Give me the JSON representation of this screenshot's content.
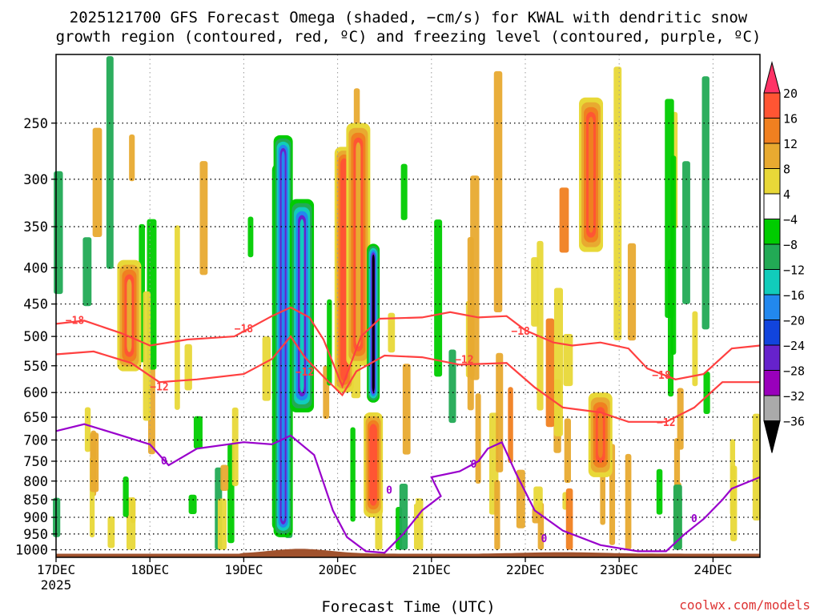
{
  "title_line1": "2025121700 GFS Forecast Omega (shaded, −cm/s) for KWAL with dendritic snow",
  "title_line2": "growth region (contoured, red, ºC) and freezing level (contoured, purple, ºC)",
  "xlabel": "Forecast Time (UTC)",
  "watermark": "coolwx.com/models",
  "chart_data": {
    "type": "heatmap",
    "title": "2025121700 GFS Forecast Omega (shaded, −cm/s) for KWAL with dendritic snow growth region (contoured, red, ºC) and freezing level (contoured, purple, ºC)",
    "xlabel": "Forecast Time (UTC)",
    "ylabel": "",
    "x_ticks": [
      {
        "label": "17DEC",
        "day": 0
      },
      {
        "label": "18DEC",
        "day": 1
      },
      {
        "label": "19DEC",
        "day": 2
      },
      {
        "label": "20DEC",
        "day": 3
      },
      {
        "label": "21DEC",
        "day": 4
      },
      {
        "label": "22DEC",
        "day": 5
      },
      {
        "label": "23DEC",
        "day": 6
      },
      {
        "label": "24DEC",
        "day": 7
      }
    ],
    "x_year_label": "2025",
    "x_range_days": [
      0,
      7.5
    ],
    "y_ticks": [
      250,
      300,
      350,
      400,
      450,
      500,
      550,
      600,
      650,
      700,
      750,
      800,
      850,
      900,
      950,
      1000
    ],
    "y_range_hpa": [
      200,
      1025
    ],
    "y_log": true,
    "grid": true,
    "colorbar": {
      "labels": [
        "20",
        "16",
        "12",
        "8",
        "4",
        "−4",
        "−8",
        "−12",
        "−16",
        "−20",
        "−24",
        "−28",
        "−32",
        "−36"
      ],
      "colors": [
        "#ff3366",
        "#ff5533",
        "#f08020",
        "#e8aa30",
        "#e8d838",
        "#ffffff",
        "#00cc00",
        "#22aa55",
        "#11ccbb",
        "#2288ee",
        "#1144dd",
        "#6622cc",
        "#9900bb",
        "#aaaaaa",
        "#000000"
      ]
    },
    "omega_features": [
      {
        "day": 2.37,
        "p_top": 285,
        "p_bot": 940,
        "value": -38
      },
      {
        "day": 2.42,
        "p_top": 260,
        "p_bot": 960,
        "value": -20
      },
      {
        "day": 2.62,
        "p_top": 320,
        "p_bot": 640,
        "value": -14
      },
      {
        "day": 3.07,
        "p_top": 270,
        "p_bot": 600,
        "value": 18
      },
      {
        "day": 3.22,
        "p_top": 250,
        "p_bot": 550,
        "value": 10
      },
      {
        "day": 3.38,
        "p_top": 370,
        "p_bot": 620,
        "value": -38
      },
      {
        "day": 3.38,
        "p_top": 640,
        "p_bot": 900,
        "value": 16
      },
      {
        "day": 0.78,
        "p_top": 390,
        "p_bot": 560,
        "value": 8
      },
      {
        "day": 5.7,
        "p_top": 230,
        "p_bot": 380,
        "value": 12
      },
      {
        "day": 5.8,
        "p_top": 600,
        "p_bot": 790,
        "value": 12
      }
    ],
    "series": [
      {
        "name": "-18",
        "color": "#ff4040",
        "points": [
          [
            0,
            480
          ],
          [
            0.3,
            475
          ],
          [
            0.7,
            495
          ],
          [
            1.0,
            515
          ],
          [
            1.4,
            505
          ],
          [
            1.9,
            500
          ],
          [
            2.3,
            468
          ],
          [
            2.5,
            455
          ],
          [
            2.7,
            470
          ],
          [
            2.85,
            505
          ],
          [
            3.05,
            588
          ],
          [
            3.25,
            500
          ],
          [
            3.45,
            472
          ],
          [
            3.9,
            470
          ],
          [
            4.2,
            462
          ],
          [
            4.5,
            470
          ],
          [
            4.8,
            468
          ],
          [
            5.0,
            490
          ],
          [
            5.3,
            510
          ],
          [
            5.5,
            515
          ],
          [
            5.8,
            510
          ],
          [
            6.1,
            520
          ],
          [
            6.3,
            555
          ],
          [
            6.6,
            575
          ],
          [
            6.9,
            565
          ],
          [
            7.2,
            520
          ],
          [
            7.5,
            515
          ]
        ],
        "labels": [
          {
            "text": "−18",
            "day": 0.2,
            "p": 475
          },
          {
            "text": "−18",
            "day": 2.0,
            "p": 488
          },
          {
            "text": "−18",
            "day": 4.95,
            "p": 492
          },
          {
            "text": "−18",
            "day": 6.45,
            "p": 568
          }
        ]
      },
      {
        "name": "-12",
        "color": "#ff4040",
        "points": [
          [
            0,
            530
          ],
          [
            0.4,
            525
          ],
          [
            0.8,
            545
          ],
          [
            1.1,
            580
          ],
          [
            1.5,
            575
          ],
          [
            2.0,
            565
          ],
          [
            2.3,
            538
          ],
          [
            2.5,
            500
          ],
          [
            2.65,
            535
          ],
          [
            2.85,
            570
          ],
          [
            3.05,
            605
          ],
          [
            3.2,
            560
          ],
          [
            3.5,
            532
          ],
          [
            3.9,
            535
          ],
          [
            4.3,
            548
          ],
          [
            4.8,
            545
          ],
          [
            5.1,
            590
          ],
          [
            5.4,
            630
          ],
          [
            5.8,
            640
          ],
          [
            6.1,
            660
          ],
          [
            6.5,
            660
          ],
          [
            6.8,
            630
          ],
          [
            7.1,
            580
          ],
          [
            7.5,
            580
          ]
        ],
        "labels": [
          {
            "text": "−12",
            "day": 1.1,
            "p": 590
          },
          {
            "text": "−12",
            "day": 2.65,
            "p": 562
          },
          {
            "text": "−12",
            "day": 4.35,
            "p": 540
          },
          {
            "text": "−12",
            "day": 6.5,
            "p": 662
          }
        ]
      },
      {
        "name": "0",
        "color": "#9900cc",
        "points": [
          [
            0,
            680
          ],
          [
            0.3,
            665
          ],
          [
            0.7,
            690
          ],
          [
            1.0,
            710
          ],
          [
            1.2,
            760
          ],
          [
            1.5,
            720
          ],
          [
            2.0,
            705
          ],
          [
            2.3,
            710
          ],
          [
            2.5,
            690
          ],
          [
            2.75,
            735
          ],
          [
            2.95,
            880
          ],
          [
            3.1,
            960
          ],
          [
            3.3,
            1005
          ],
          [
            3.5,
            1010
          ],
          [
            3.7,
            950
          ],
          [
            3.9,
            880
          ],
          [
            4.1,
            840
          ],
          [
            4.0,
            790
          ],
          [
            4.3,
            775
          ],
          [
            4.5,
            750
          ],
          [
            4.6,
            720
          ],
          [
            4.75,
            705
          ],
          [
            4.9,
            780
          ],
          [
            5.1,
            880
          ],
          [
            5.4,
            940
          ],
          [
            5.8,
            985
          ],
          [
            6.2,
            1005
          ],
          [
            6.5,
            1005
          ],
          [
            6.7,
            950
          ],
          [
            6.9,
            905
          ],
          [
            7.1,
            850
          ],
          [
            7.2,
            820
          ],
          [
            7.5,
            790
          ]
        ],
        "labels": [
          {
            "text": "0",
            "day": 1.15,
            "p": 750
          },
          {
            "text": "0",
            "day": 3.55,
            "p": 825
          },
          {
            "text": "0",
            "day": 4.45,
            "p": 758
          },
          {
            "text": "0",
            "day": 5.2,
            "p": 965
          },
          {
            "text": "0",
            "day": 6.8,
            "p": 905
          }
        ]
      }
    ]
  }
}
